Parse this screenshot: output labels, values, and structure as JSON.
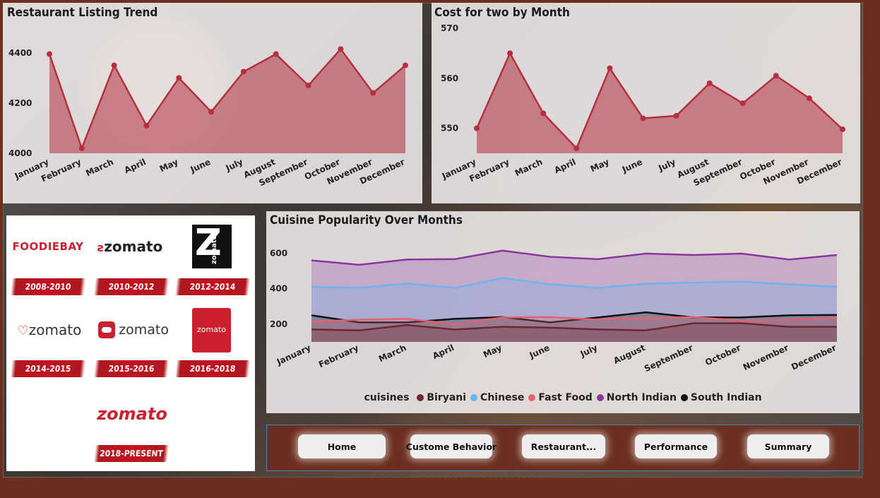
{
  "charts": {
    "listing": {
      "title": "Restaurant Listing Trend",
      "yticks": [
        "4400",
        "4200",
        "4000"
      ]
    },
    "cost": {
      "title": "Cost for two by Month",
      "yticks": [
        "570",
        "560",
        "550"
      ]
    },
    "cuisine": {
      "title": "Cuisine Popularity Over Months",
      "yticks": [
        "600",
        "400",
        "200"
      ],
      "legend_title": "cuisines"
    }
  },
  "chart_data": [
    {
      "type": "area",
      "title": "Restaurant Listing Trend",
      "categories": [
        "January",
        "February",
        "March",
        "April",
        "May",
        "June",
        "July",
        "August",
        "September",
        "October",
        "November",
        "December"
      ],
      "values": [
        4395,
        4020,
        4350,
        4110,
        4300,
        4165,
        4325,
        4395,
        4270,
        4415,
        4240,
        4350
      ],
      "ylim": [
        4000,
        4450
      ],
      "color": "#b4303f"
    },
    {
      "type": "area",
      "title": "Cost for two by Month",
      "categories": [
        "January",
        "February",
        "March",
        "April",
        "May",
        "June",
        "July",
        "August",
        "September",
        "October",
        "November",
        "December"
      ],
      "values": [
        550,
        565,
        553,
        546,
        562,
        552,
        552.5,
        559,
        555,
        560.5,
        556,
        549.8
      ],
      "ylim": [
        545,
        570
      ],
      "color": "#b4303f"
    },
    {
      "type": "area",
      "title": "Cuisine Popularity Over Months",
      "categories": [
        "January",
        "February",
        "March",
        "April",
        "May",
        "June",
        "July",
        "August",
        "September",
        "October",
        "November",
        "December"
      ],
      "ylim": [
        100,
        650
      ],
      "legend": "bottom",
      "series": [
        {
          "name": "North Indian",
          "color": "#8a35a0",
          "values": [
            560,
            535,
            565,
            567,
            615,
            580,
            567,
            598,
            590,
            598,
            565,
            590
          ]
        },
        {
          "name": "Chinese",
          "color": "#6cb4f0",
          "values": [
            410,
            405,
            430,
            405,
            460,
            425,
            405,
            428,
            435,
            440,
            425,
            410
          ]
        },
        {
          "name": "South Indian",
          "color": "#111111",
          "values": [
            250,
            210,
            210,
            230,
            240,
            210,
            238,
            267,
            238,
            238,
            250,
            252
          ]
        },
        {
          "name": "Fast Food",
          "color": "#e06470",
          "values": [
            215,
            225,
            230,
            200,
            238,
            240,
            225,
            235,
            240,
            220,
            225,
            235
          ]
        },
        {
          "name": "Biryani",
          "color": "#6b2830",
          "values": [
            170,
            165,
            195,
            170,
            185,
            180,
            170,
            165,
            205,
            205,
            185,
            185
          ]
        }
      ]
    }
  ],
  "logos": [
    {
      "brand": "FOODIEBAY",
      "years": "2008-2010"
    },
    {
      "brand": "zomato",
      "years": "2010-2012"
    },
    {
      "brand": "zomato",
      "badge": "Z",
      "years": "2012-2014"
    },
    {
      "brand": "zomato",
      "years": "2014-2015"
    },
    {
      "brand": "zomato",
      "years": "2015-2016"
    },
    {
      "brand": "zomato",
      "years": "2016-2018"
    },
    {
      "brand": "zomato",
      "years": "2018-PRESENT"
    }
  ],
  "nav": [
    "Home",
    "Custome Behavior",
    "Restaurant...",
    "Performance",
    "Summary"
  ],
  "colors": {
    "accent": "#b4303f",
    "brand_red": "#cb202d",
    "frame": "#6b2f1f"
  }
}
